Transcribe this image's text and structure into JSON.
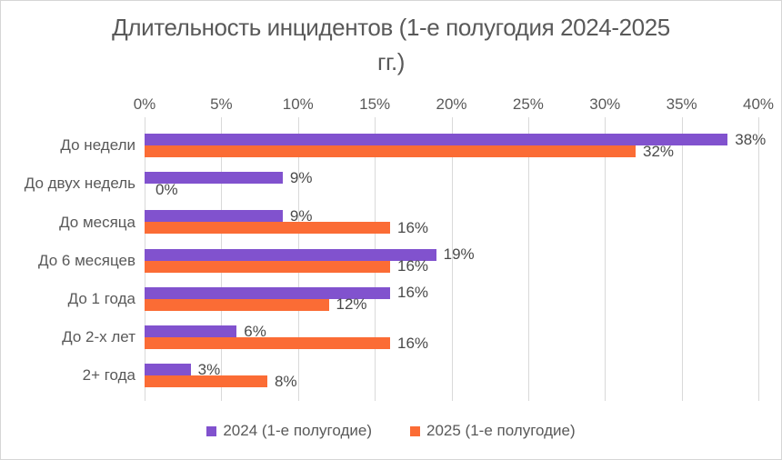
{
  "chart_data": {
    "type": "bar",
    "orientation": "horizontal-grouped",
    "title": "Длительность инцидентов (1-е полугодия 2024-2025 гг.)",
    "title_lines": [
      "Длительность инцидентов (1-е полугодия 2024-2025",
      "гг.)"
    ],
    "categories": [
      "До недели",
      "До двух недель",
      "До месяца",
      "До 6 месяцев",
      "До 1 года",
      "До 2-х лет",
      "2+ года"
    ],
    "series": [
      {
        "key": "2024",
        "name": "2024 (1-е полугодие)",
        "color": "#8152ce",
        "values": [
          38,
          9,
          9,
          19,
          16,
          6,
          3
        ],
        "labels": [
          "38%",
          "9%",
          "9%",
          "19%",
          "16%",
          "6%",
          "3%"
        ]
      },
      {
        "key": "2025",
        "name": "2025 (1-е полугодие)",
        "color": "#fb6c35",
        "values": [
          32,
          0,
          16,
          16,
          12,
          16,
          8
        ],
        "labels": [
          "32%",
          "0%",
          "16%",
          "16%",
          "12%",
          "16%",
          "8%"
        ]
      }
    ],
    "x_axis": {
      "position": "top",
      "min": 0,
      "max": 40,
      "tick_values": [
        0,
        5,
        10,
        15,
        20,
        25,
        30,
        35,
        40
      ],
      "tick_labels": [
        "0%",
        "5%",
        "10%",
        "15%",
        "20%",
        "25%",
        "30%",
        "35%",
        "40%"
      ]
    },
    "grid": true,
    "legend_position": "bottom",
    "colors": {
      "title_text": "#595959",
      "axis_text": "#595959",
      "category_text": "#595959",
      "data_label_text": "#4a4a4a",
      "gridline": "#d9d9d9",
      "background": "#ffffff",
      "series_2024": "#8152ce",
      "series_2025": "#fb6c35"
    }
  }
}
